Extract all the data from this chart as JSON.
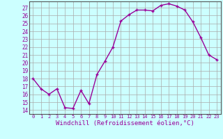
{
  "x": [
    0,
    1,
    2,
    3,
    4,
    5,
    6,
    7,
    8,
    9,
    10,
    11,
    12,
    13,
    14,
    15,
    16,
    17,
    18,
    19,
    20,
    21,
    22,
    23
  ],
  "y": [
    18,
    16.7,
    16.0,
    16.7,
    14.3,
    14.2,
    16.5,
    14.8,
    18.5,
    20.2,
    22.0,
    25.3,
    26.1,
    26.7,
    26.7,
    26.6,
    27.3,
    27.5,
    27.2,
    26.7,
    25.2,
    23.2,
    21.0,
    20.4
  ],
  "line_color": "#990099",
  "marker": "+",
  "xlabel": "Windchill (Refroidissement éolien,°C)",
  "ylabel_ticks": [
    14,
    15,
    16,
    17,
    18,
    19,
    20,
    21,
    22,
    23,
    24,
    25,
    26,
    27
  ],
  "ylim": [
    13.5,
    27.8
  ],
  "xlim": [
    -0.5,
    23.5
  ],
  "bg_color": "#ccffff",
  "grid_color": "#aaaaaa",
  "tick_label_color": "#990099",
  "xlabel_color": "#990099",
  "xlabel_fontsize": 6.5,
  "ytick_fontsize": 5.5,
  "xtick_fontsize": 5.0,
  "linewidth": 1.0,
  "markersize": 3.5
}
